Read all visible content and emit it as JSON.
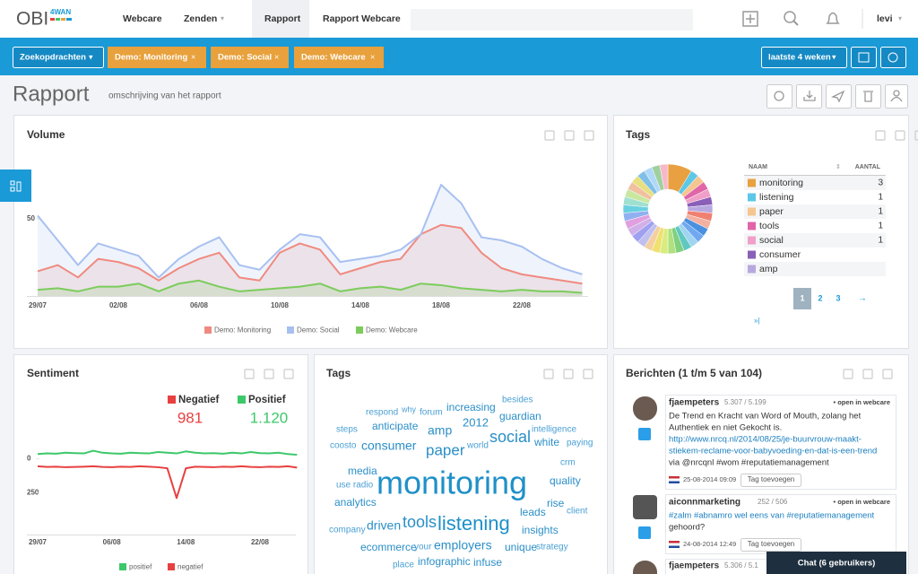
{
  "nav": {
    "logo": "OBI",
    "logo_sub": "4WAN",
    "items": [
      "Webcare",
      "Zenden",
      "Rapport",
      "Rapport Webcare"
    ],
    "user": "levi"
  },
  "toolbar": {
    "search_button": "Zoekopdrachten",
    "filters": [
      "Demo: Monitoring",
      "Demo: Social",
      "Demo: Webcare"
    ],
    "period": "laatste 4 weken"
  },
  "page": {
    "title": "Rapport",
    "description": "omschrijving van het rapport"
  },
  "chart_data": [
    {
      "type": "line",
      "title": "Volume",
      "categories": [
        "29/07",
        null,
        null,
        null,
        "02/08",
        null,
        null,
        null,
        "06/08",
        null,
        null,
        null,
        "10/08",
        null,
        null,
        null,
        "14/08",
        null,
        null,
        null,
        "18/08",
        null,
        null,
        null,
        "22/08",
        null,
        null,
        null
      ],
      "series": [
        {
          "name": "Demo: Monitoring",
          "color": "#f08a80",
          "values": [
            16,
            20,
            12,
            24,
            22,
            18,
            10,
            18,
            24,
            28,
            12,
            10,
            28,
            34,
            30,
            14,
            18,
            22,
            24,
            40,
            46,
            44,
            28,
            18,
            14,
            12,
            10,
            8
          ]
        },
        {
          "name": "Demo: Social",
          "color": "#a8c0f0",
          "values": [
            52,
            36,
            20,
            34,
            30,
            26,
            12,
            24,
            32,
            38,
            20,
            17,
            30,
            40,
            38,
            22,
            24,
            26,
            30,
            40,
            72,
            60,
            38,
            36,
            32,
            24,
            18,
            14
          ]
        },
        {
          "name": "Demo: Webcare",
          "color": "#7ccc5c",
          "values": [
            4,
            5,
            3,
            6,
            6,
            8,
            3,
            8,
            10,
            6,
            3,
            4,
            5,
            6,
            8,
            3,
            5,
            6,
            4,
            8,
            7,
            5,
            4,
            3,
            4,
            3,
            3,
            2
          ]
        }
      ],
      "ylim": [
        0,
        90
      ],
      "yticks": [
        50
      ],
      "legend": "bottom"
    },
    {
      "type": "donut",
      "title": "Tags",
      "columns": [
        "NAAM",
        "AANTAL"
      ],
      "categories": [
        "monitoring",
        "listening",
        "paper",
        "tools",
        "social",
        "consumer",
        "amp",
        null,
        null,
        null,
        null,
        null,
        null,
        null,
        null,
        null,
        null,
        null,
        null,
        null,
        null,
        null,
        null,
        null,
        null,
        null,
        null,
        null,
        null,
        null,
        null,
        null
      ],
      "values": [
        3,
        1,
        1,
        1,
        1,
        1,
        1,
        1,
        1,
        1,
        1,
        1,
        1,
        1,
        1,
        1,
        1,
        1,
        1,
        1,
        1,
        1,
        1,
        1,
        1,
        1,
        1,
        1,
        1,
        1,
        1,
        1
      ],
      "colors": [
        "#e8a040",
        "#5bc8e8",
        "#f5c690",
        "#e066a8",
        "#f0a0c8",
        "#8a5fb8",
        "#b8a8e0",
        "#f08070",
        "#f4b0a0",
        "#4a90e0",
        "#70a8f0",
        "#9fd5f0",
        "#60c8c0",
        "#7fd07f",
        "#b0e080",
        "#d8ec80",
        "#f0e070",
        "#f4d0a0",
        "#c0c0f0",
        "#a0a0f0",
        "#d0b0e8",
        "#e0a0e0",
        "#90b0f0",
        "#6ad0e0",
        "#a0e0d0",
        "#c8e8a0",
        "#f0c0a0",
        "#e8e080",
        "#80c0e8",
        "#b0d8f8",
        "#a0d0a0",
        "#f8b8c8"
      ],
      "pager": [
        1,
        2,
        3
      ]
    },
    {
      "type": "line",
      "title": "Sentiment",
      "summary": {
        "names": [
          "Negatief",
          "Positief"
        ],
        "values": [
          981,
          1120
        ],
        "value_labels": [
          "981",
          "1.120"
        ],
        "colors": [
          "#e84040",
          "#3cc86a"
        ]
      },
      "categories": [
        "29/07",
        null,
        null,
        null,
        null,
        null,
        null,
        null,
        "06/08",
        null,
        null,
        null,
        null,
        null,
        null,
        null,
        "14/08",
        null,
        null,
        null,
        null,
        null,
        null,
        null,
        "22/08",
        null,
        null,
        null,
        null
      ],
      "series": [
        {
          "name": "positief",
          "color": "#3cc86a",
          "values": [
            -35,
            -40,
            -38,
            -45,
            -42,
            -40,
            -60,
            -45,
            -40,
            -38,
            -45,
            -42,
            -40,
            -50,
            -45,
            -40,
            -55,
            -45,
            -40,
            -42,
            -38,
            -45,
            -40,
            -50,
            -42,
            -40,
            -45,
            -35,
            -30
          ]
        },
        {
          "name": "negatief",
          "color": "#e84040",
          "values": [
            55,
            60,
            58,
            62,
            60,
            58,
            55,
            60,
            62,
            58,
            60,
            55,
            58,
            62,
            70,
            290,
            70,
            58,
            60,
            62,
            58,
            60,
            55,
            60,
            62,
            58,
            60,
            55,
            65
          ]
        }
      ],
      "ylim": [
        520,
        -110
      ],
      "yticks": [
        0,
        250
      ],
      "legend": "bottom"
    }
  ],
  "wordcloud": {
    "title": "Tags",
    "words": [
      "respond",
      "why",
      "forum",
      "increasing",
      "besides",
      "steps",
      "anticipate",
      "2012",
      "guardian",
      "intelligence",
      "coosto",
      "consumer",
      "amp",
      "social",
      "white",
      "paying",
      "paper",
      "world",
      "crm",
      "media",
      "quality",
      "use radio",
      "monitoring",
      "analytics",
      "rise",
      "leads",
      "client",
      "company",
      "driven",
      "tools",
      "listening",
      "insights",
      "ecommerce",
      "your",
      "employers",
      "unique",
      "strategy",
      "place",
      "infographic",
      "infuse"
    ]
  },
  "messages": {
    "title": "Berichten (1 t/m 5 van 104)",
    "open": "• open in webcare",
    "tag_button": "Tag toevoegen",
    "chat": "Chat (6 gebruikers)",
    "items": [
      {
        "user": "fjaempeters",
        "stats": "5.307 / 5.199",
        "lines": [
          "De Trend en Kracht van Word of Mouth, zolang het",
          "Authentiek en niet Gekocht is.",
          "http://www.nrcq.nl/2014/08/25/je-buurvrouw-maakt-",
          "stiekem-reclame-voor-babyvoeding-en-dat-is-een-trend",
          "via @nrcqnl #wom #reputatiemanagement"
        ],
        "date": "25-08-2014 09:09"
      },
      {
        "user": "aiconnmarketing",
        "stats": "252 / 506",
        "lines": [
          "#zalm #abnamro wel eens van #reputatiemanagement",
          "gehoord?"
        ],
        "date": "24-08-2014 12:49"
      },
      {
        "user": "fjaempeters",
        "stats": "5.306 / 5.1",
        "lines": [],
        "date": null
      }
    ]
  }
}
